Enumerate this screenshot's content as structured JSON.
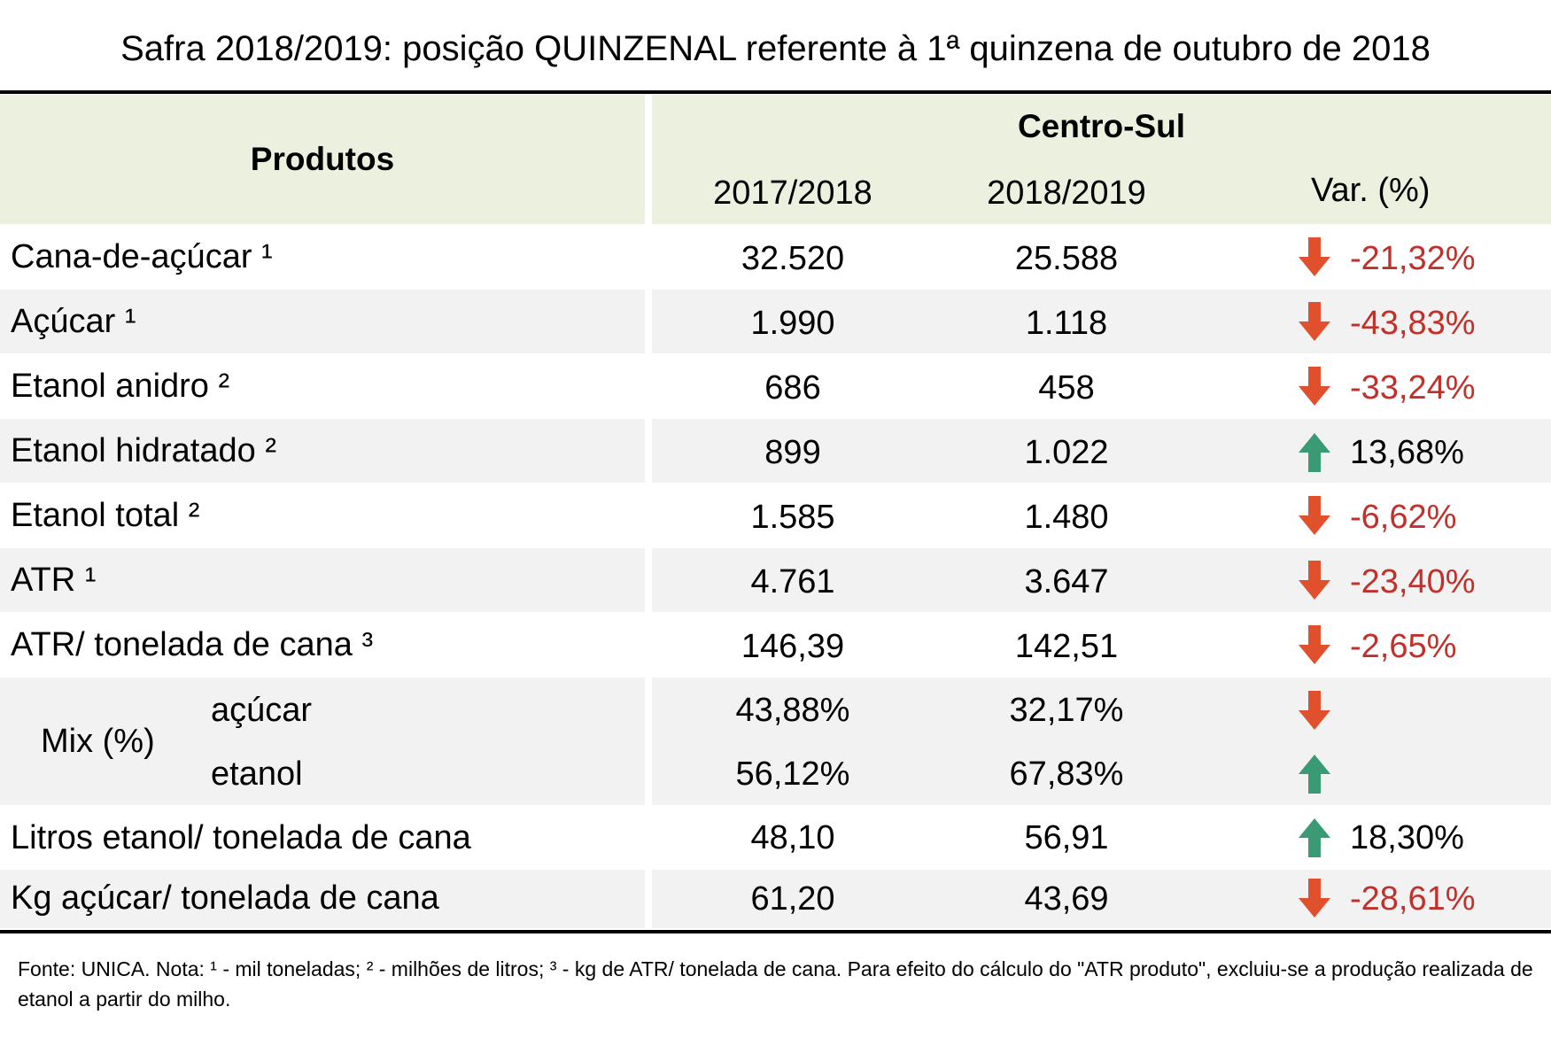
{
  "title": "Safra 2018/2019: posição QUINZENAL referente à 1ª quinzena de outubro de 2018",
  "header": {
    "produtos": "Produtos",
    "region": "Centro-Sul",
    "col1": "2017/2018",
    "col2": "2018/2019",
    "col3": "Var. (%)"
  },
  "rows": [
    {
      "label": "Cana-de-açúcar ¹",
      "v1": "32.520",
      "v2": "25.588",
      "dir": "down",
      "var": "-21,32%"
    },
    {
      "label": "Açúcar ¹",
      "v1": "1.990",
      "v2": "1.118",
      "dir": "down",
      "var": "-43,83%"
    },
    {
      "label": "Etanol anidro ²",
      "v1": "686",
      "v2": "458",
      "dir": "down",
      "var": "-33,24%"
    },
    {
      "label": "Etanol hidratado ²",
      "v1": "899",
      "v2": "1.022",
      "dir": "up",
      "var": "13,68%"
    },
    {
      "label": "Etanol total ²",
      "v1": "1.585",
      "v2": "1.480",
      "dir": "down",
      "var": "-6,62%"
    },
    {
      "label": "ATR ¹",
      "v1": "4.761",
      "v2": "3.647",
      "dir": "down",
      "var": "-23,40%"
    },
    {
      "label": "ATR/ tonelada de cana ³",
      "v1": "146,39",
      "v2": "142,51",
      "dir": "down",
      "var": "-2,65%"
    }
  ],
  "mix": {
    "label": "Mix (%)",
    "acucar": {
      "label": "açúcar",
      "v1": "43,88%",
      "v2": "32,17%",
      "dir": "down"
    },
    "etanol": {
      "label": "etanol",
      "v1": "56,12%",
      "v2": "67,83%",
      "dir": "up"
    }
  },
  "rows2": [
    {
      "label": "Litros etanol/ tonelada de cana",
      "v1": "48,10",
      "v2": "56,91",
      "dir": "up",
      "var": "18,30%"
    },
    {
      "label": "Kg açúcar/ tonelada de cana",
      "v1": "61,20",
      "v2": "43,69",
      "dir": "down",
      "var": "-28,61%"
    }
  ],
  "colors": {
    "header_bg": "#ebf1de",
    "alt_row_bg": "#f2f2f2",
    "down_arrow": "#e0502d",
    "up_arrow": "#3a9a73",
    "negative_text": "#c0312b"
  },
  "footnote": "Fonte: UNICA. Nota: ¹ - mil toneladas; ² - milhões de litros; ³ - kg de ATR/ tonelada de cana. Para efeito do cálculo do \"ATR produto\", excluiu-se a produção realizada de etanol a partir do milho."
}
